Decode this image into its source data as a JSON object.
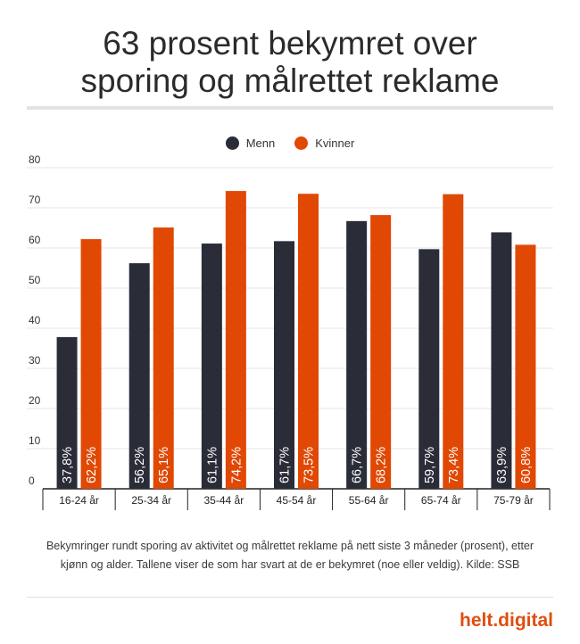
{
  "header": {
    "title_line1": "63 prosent bekymret over",
    "title_line2": "sporing og målrettet reklame"
  },
  "chart_data": {
    "type": "bar",
    "categories": [
      "16-24 år",
      "25-34 år",
      "35-44 år",
      "45-54 år",
      "55-64 år",
      "65-74 år",
      "75-79 år"
    ],
    "series": [
      {
        "name": "Menn",
        "color": "#2a2d38",
        "values": [
          37.8,
          56.2,
          61.1,
          61.7,
          66.7,
          59.7,
          63.9
        ],
        "labels": [
          "37,8%",
          "56,2%",
          "61,1%",
          "61,7%",
          "66,7%",
          "59,7%",
          "63,9%"
        ]
      },
      {
        "name": "Kvinner",
        "color": "#e04804",
        "values": [
          62.2,
          65.1,
          74.2,
          73.5,
          68.2,
          73.4,
          60.8
        ],
        "labels": [
          "62,2%",
          "65,1%",
          "74,2%",
          "73,5%",
          "68,2%",
          "73,4%",
          "60,8%"
        ]
      }
    ],
    "yticks": [
      "0",
      "10",
      "20",
      "30",
      "40",
      "50",
      "60",
      "70",
      "80"
    ],
    "ylim": [
      0,
      80
    ],
    "grid": true,
    "legend_position": "top-center"
  },
  "caption": {
    "line1": "Bekymringer rundt sporing av aktivitet og målrettet reklame på nett siste 3 måneder (prosent), etter",
    "line2": "kjønn og alder. Tallene viser de som har svart at de er bekymret (noe eller veldig). Kilde: SSB"
  },
  "brand": "helt.digital"
}
